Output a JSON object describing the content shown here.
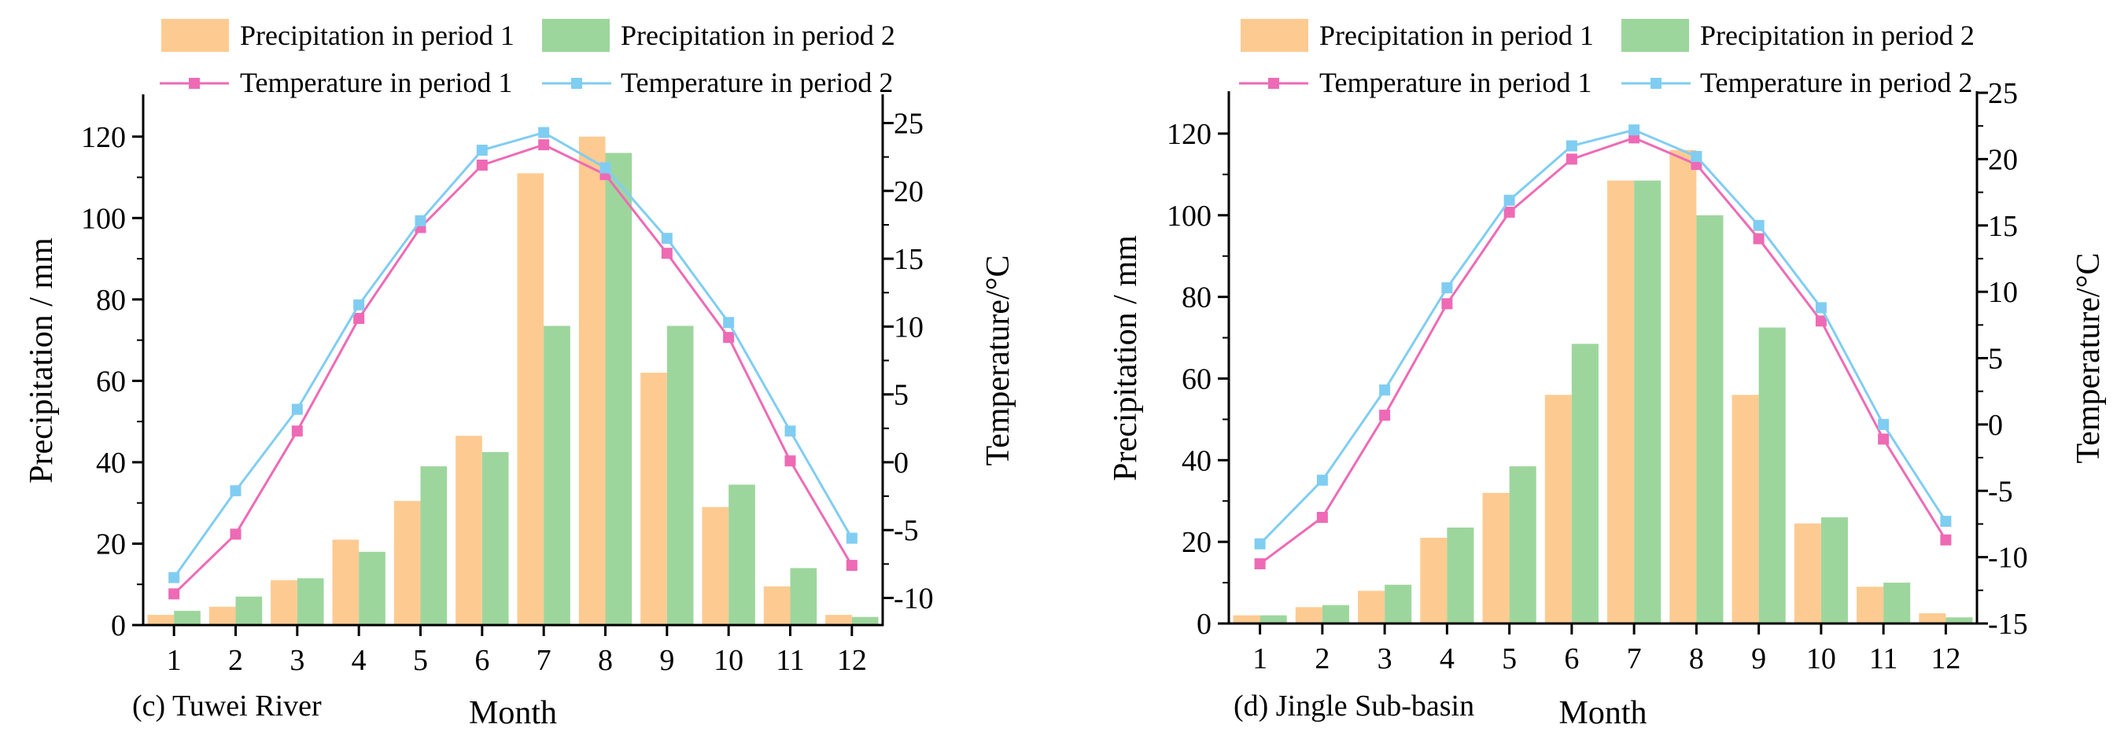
{
  "colors": {
    "precip1": "#fdcb92",
    "precip2": "#9dd69d",
    "temp1": "#ee6ab5",
    "temp2": "#80cdf2",
    "axis": "#000000"
  },
  "chart_data": [
    {
      "type": "bar+line",
      "panel_label": "(c) Tuwei River",
      "xlabel": "Month",
      "ylabel": "Precipitation / mm",
      "y2label": "Temperature/°C",
      "categories": [
        "1",
        "2",
        "3",
        "4",
        "5",
        "6",
        "7",
        "8",
        "9",
        "10",
        "11",
        "12"
      ],
      "ylim": [
        0,
        130
      ],
      "yticks": [
        0,
        20,
        40,
        60,
        80,
        100,
        120
      ],
      "y2lim": [
        -12,
        27
      ],
      "y2ticks": [
        -10,
        -5,
        0,
        5,
        10,
        15,
        20,
        25
      ],
      "legend": [
        "Precipitation in period 1",
        "Precipitation in period 2",
        "Temperature in period 1",
        "Temperature in period 2"
      ],
      "series": [
        {
          "name": "Precipitation in period 1",
          "kind": "bar",
          "axis": "left",
          "values": [
            2.5,
            4.5,
            11,
            21,
            30.5,
            46.5,
            111,
            120,
            62,
            29,
            9.5,
            2.5
          ]
        },
        {
          "name": "Precipitation in period 2",
          "kind": "bar",
          "axis": "left",
          "values": [
            3.5,
            7,
            11.5,
            18,
            39,
            42.5,
            73.5,
            116,
            73.5,
            34.5,
            14,
            2
          ]
        },
        {
          "name": "Temperature in period 1",
          "kind": "line",
          "axis": "right",
          "values": [
            -9.7,
            -5.3,
            2.3,
            10.6,
            17.3,
            21.9,
            23.4,
            21.2,
            15.4,
            9.2,
            0.1,
            -7.6
          ]
        },
        {
          "name": "Temperature in period 2",
          "kind": "line",
          "axis": "right",
          "values": [
            -8.5,
            -2.1,
            3.9,
            11.6,
            17.8,
            23,
            24.3,
            21.7,
            16.5,
            10.3,
            2.3,
            -5.6
          ]
        }
      ]
    },
    {
      "type": "bar+line",
      "panel_label": "(d) Jingle Sub-basin",
      "xlabel": "Month",
      "ylabel": "Precipitation / mm",
      "y2label": "Temperature/°C",
      "categories": [
        "1",
        "2",
        "3",
        "4",
        "5",
        "6",
        "7",
        "8",
        "9",
        "10",
        "11",
        "12"
      ],
      "ylim": [
        0,
        130
      ],
      "yticks": [
        0,
        20,
        40,
        60,
        80,
        100,
        120
      ],
      "y2lim": [
        -15,
        25
      ],
      "y2ticks": [
        -15,
        -10,
        -5,
        0,
        5,
        10,
        15,
        20,
        25
      ],
      "legend": [
        "Precipitation in period 1",
        "Precipitation in period 2",
        "Temperature in period 1",
        "Temperature in period 2"
      ],
      "series": [
        {
          "name": "Precipitation in period 1",
          "kind": "bar",
          "axis": "left",
          "values": [
            2,
            4,
            8,
            21,
            32,
            56,
            108.5,
            116,
            56,
            24.5,
            9,
            2.5
          ]
        },
        {
          "name": "Precipitation in period 2",
          "kind": "bar",
          "axis": "left",
          "values": [
            2,
            4.5,
            9.5,
            23.5,
            38.5,
            68.5,
            108.5,
            100,
            72.5,
            26,
            10,
            1.5
          ]
        },
        {
          "name": "Temperature in period 1",
          "kind": "line",
          "axis": "right",
          "values": [
            -10.5,
            -7,
            0.7,
            9.1,
            16,
            20,
            21.6,
            19.6,
            14,
            7.8,
            -1.1,
            -8.7
          ]
        },
        {
          "name": "Temperature in period 2",
          "kind": "line",
          "axis": "right",
          "values": [
            -9,
            -4.2,
            2.6,
            10.3,
            16.9,
            21,
            22.2,
            20.2,
            15,
            8.8,
            0,
            -7.3
          ]
        }
      ]
    }
  ]
}
